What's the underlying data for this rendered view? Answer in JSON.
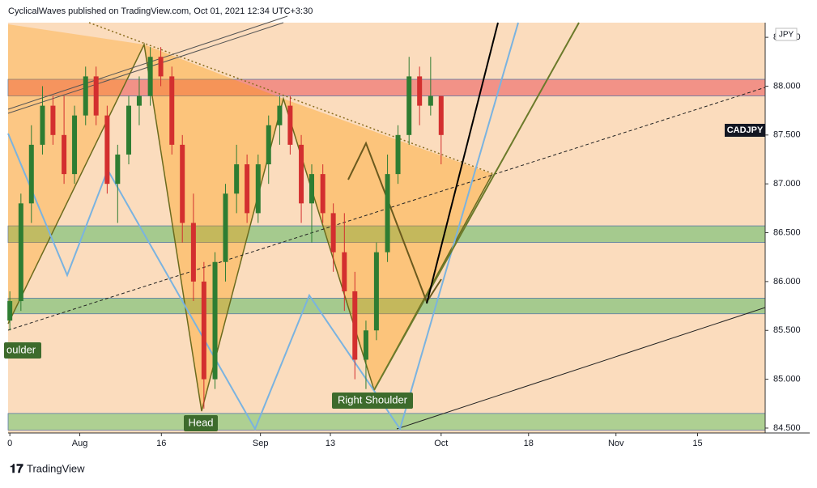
{
  "header": "CyclicalWaves published on TradingView.com, Oct 01, 2021 12:34 UTC+3:30",
  "footer": "TradingView",
  "chart_data": {
    "type": "candlestick",
    "symbol": "CADJPY",
    "currency": "JPY",
    "x": [
      0,
      1.9,
      3.7,
      5.6,
      7.4,
      9.3,
      11.1,
      13,
      14.8,
      16.7,
      18.5,
      20.4,
      22.2,
      24.1,
      25.9,
      27.8,
      29.6,
      31.5,
      33.3,
      35.2,
      37,
      38.9,
      40.7,
      42.6,
      44.4,
      46.3,
      48.1,
      50,
      51.8,
      53.7,
      55.5,
      57.4,
      59.2,
      61.1,
      62.9,
      64.8,
      66.6,
      68.5,
      70.3,
      72.2,
      74
    ],
    "open": [
      85.6,
      85.8,
      86.8,
      87.4,
      87.8,
      87.5,
      87.1,
      87.7,
      88.1,
      87.7,
      87.0,
      87.3,
      87.8,
      87.9,
      88.3,
      88.1,
      87.4,
      86.6,
      86.0,
      85.0,
      86.2,
      86.9,
      87.2,
      86.7,
      87.2,
      87.6,
      87.8,
      87.4,
      86.8,
      87.1,
      86.7,
      86.3,
      85.9,
      85.2,
      85.5,
      86.3,
      87.1,
      87.5,
      88.1,
      87.8,
      87.9
    ],
    "high": [
      85.9,
      86.9,
      87.6,
      88.0,
      87.9,
      87.9,
      87.8,
      88.2,
      88.2,
      87.8,
      87.4,
      87.9,
      88.1,
      88.4,
      88.4,
      88.2,
      87.5,
      86.9,
      86.2,
      86.3,
      87.0,
      87.4,
      87.3,
      87.3,
      87.7,
      87.9,
      87.9,
      87.5,
      87.2,
      87.2,
      86.8,
      86.7,
      86.1,
      85.6,
      86.4,
      87.3,
      87.6,
      88.3,
      88.2,
      88.3,
      87.9
    ],
    "low": [
      85.5,
      85.7,
      86.6,
      87.3,
      87.4,
      87.0,
      87.0,
      87.6,
      87.6,
      86.9,
      86.6,
      87.2,
      87.6,
      87.8,
      88.0,
      87.3,
      86.4,
      85.8,
      84.7,
      84.9,
      86.0,
      86.7,
      86.6,
      86.6,
      87.0,
      87.4,
      87.3,
      86.6,
      86.4,
      86.6,
      86.1,
      85.7,
      85.0,
      84.9,
      85.4,
      86.2,
      87.0,
      87.4,
      87.6,
      87.7,
      87.2
    ],
    "close": [
      85.8,
      86.8,
      87.4,
      87.8,
      87.5,
      87.1,
      87.7,
      88.1,
      87.7,
      87.0,
      87.3,
      87.8,
      87.9,
      88.3,
      88.1,
      87.4,
      86.6,
      86.0,
      85.0,
      86.2,
      86.9,
      87.2,
      86.7,
      87.2,
      87.6,
      87.8,
      87.4,
      86.8,
      87.1,
      86.7,
      86.3,
      85.9,
      85.2,
      85.5,
      86.3,
      87.1,
      87.5,
      88.1,
      87.8,
      87.9,
      87.5
    ],
    "up_color": "#2e7d32",
    "down_color": "#d32f2f",
    "last_price": 87.5,
    "zones": [
      {
        "from": 87.9,
        "to": 88.07,
        "color": "#f28b82"
      },
      {
        "from": 86.4,
        "to": 86.57,
        "color": "#9cc98a"
      },
      {
        "from": 85.67,
        "to": 85.83,
        "color": "#9cc98a"
      },
      {
        "from": 84.48,
        "to": 84.65,
        "color": "#a6cf8e"
      }
    ],
    "annotations": [
      "oulder",
      "Head",
      "Right Shoulder"
    ],
    "xlim": [
      -0.3,
      129.6
    ],
    "ylim": [
      84.45,
      88.65
    ],
    "xticks": [
      0,
      {
        "value": 12,
        "label": "Aug"
      },
      {
        "value": 26,
        "label": "16"
      },
      {
        "value": 43,
        "label": "Sep"
      },
      {
        "value": 55,
        "label": "13"
      },
      {
        "value": 74,
        "label": "Oct"
      },
      {
        "value": 89,
        "label": "18"
      },
      {
        "value": 104,
        "label": "Nov"
      },
      {
        "value": 118,
        "label": "15"
      }
    ],
    "yticks": [
      {
        "value": 84.5,
        "label": "84.500"
      },
      {
        "value": 85,
        "label": "85.000"
      },
      {
        "value": 85.5,
        "label": "85.500"
      },
      {
        "value": 86,
        "label": "86.000"
      },
      {
        "value": 86.5,
        "label": "86.500"
      },
      {
        "value": 87,
        "label": "87.000"
      },
      {
        "value": 87.5,
        "label": "87.500"
      },
      {
        "value": 88,
        "label": "88.000"
      },
      {
        "value": 88.5,
        "label": "88.500"
      }
    ]
  }
}
